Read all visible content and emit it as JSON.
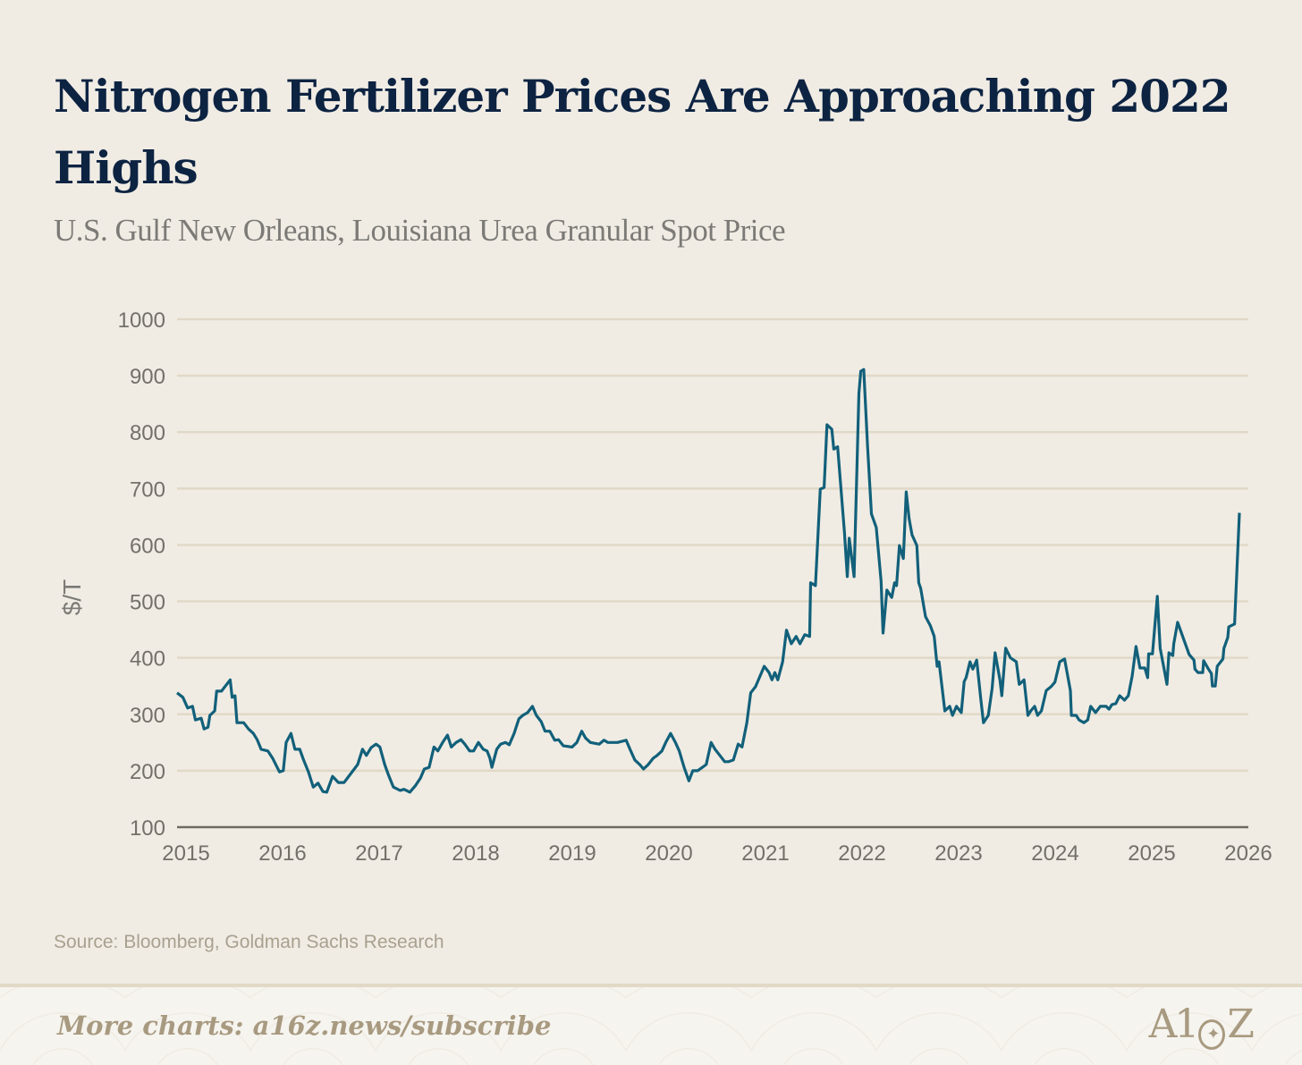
{
  "chart_data": {
    "type": "line",
    "title": "Nitrogen Fertilizer Prices Are Approaching 2022 Highs",
    "subtitle": "U.S. Gulf New Orleans, Louisiana Urea Granular Spot Price",
    "xlabel": "",
    "ylabel": "$/T",
    "xlim": [
      2015,
      2026
    ],
    "ylim": [
      100,
      1000
    ],
    "x_ticks": [
      "2015",
      "2016",
      "2017",
      "2018",
      "2019",
      "2020",
      "2021",
      "2022",
      "2023",
      "2024",
      "2025",
      "2026"
    ],
    "y_ticks": [
      "100",
      "200",
      "300",
      "400",
      "500",
      "600",
      "700",
      "800",
      "900",
      "1000"
    ],
    "grid": true,
    "legend": "none",
    "line_color": "#12607a",
    "series": [
      {
        "name": "Urea Granular Spot Price",
        "points": [
          [
            2015.0,
            338
          ],
          [
            2015.06,
            330
          ],
          [
            2015.11,
            311
          ],
          [
            2015.16,
            314
          ],
          [
            2015.19,
            290
          ],
          [
            2015.25,
            293
          ],
          [
            2015.28,
            274
          ],
          [
            2015.32,
            277
          ],
          [
            2015.34,
            298
          ],
          [
            2015.39,
            306
          ],
          [
            2015.41,
            341
          ],
          [
            2015.46,
            341
          ],
          [
            2015.55,
            361
          ],
          [
            2015.57,
            330
          ],
          [
            2015.6,
            333
          ],
          [
            2015.62,
            285
          ],
          [
            2015.69,
            285
          ],
          [
            2015.74,
            274
          ],
          [
            2015.79,
            266
          ],
          [
            2015.83,
            255
          ],
          [
            2015.87,
            238
          ],
          [
            2015.94,
            235
          ],
          [
            2015.99,
            222
          ],
          [
            2016.06,
            198
          ],
          [
            2016.1,
            200
          ],
          [
            2016.13,
            250
          ],
          [
            2016.18,
            266
          ],
          [
            2016.22,
            238
          ],
          [
            2016.27,
            238
          ],
          [
            2016.31,
            219
          ],
          [
            2016.36,
            198
          ],
          [
            2016.41,
            171
          ],
          [
            2016.46,
            178
          ],
          [
            2016.51,
            163
          ],
          [
            2016.55,
            162
          ],
          [
            2016.61,
            190
          ],
          [
            2016.67,
            179
          ],
          [
            2016.73,
            179
          ],
          [
            2016.8,
            195
          ],
          [
            2016.87,
            211
          ],
          [
            2016.92,
            238
          ],
          [
            2016.96,
            227
          ],
          [
            2017.01,
            241
          ],
          [
            2017.06,
            247
          ],
          [
            2017.1,
            242
          ],
          [
            2017.15,
            211
          ],
          [
            2017.19,
            192
          ],
          [
            2017.24,
            171
          ],
          [
            2017.31,
            165
          ],
          [
            2017.35,
            167
          ],
          [
            2017.41,
            162
          ],
          [
            2017.47,
            174
          ],
          [
            2017.52,
            187
          ],
          [
            2017.56,
            203
          ],
          [
            2017.61,
            206
          ],
          [
            2017.66,
            242
          ],
          [
            2017.7,
            235
          ],
          [
            2017.75,
            250
          ],
          [
            2017.8,
            263
          ],
          [
            2017.84,
            242
          ],
          [
            2017.89,
            250
          ],
          [
            2017.94,
            255
          ],
          [
            2017.98,
            247
          ],
          [
            2018.03,
            235
          ],
          [
            2018.07,
            235
          ],
          [
            2018.12,
            250
          ],
          [
            2018.17,
            238
          ],
          [
            2018.21,
            235
          ],
          [
            2018.24,
            222
          ],
          [
            2018.26,
            206
          ],
          [
            2018.31,
            238
          ],
          [
            2018.35,
            247
          ],
          [
            2018.4,
            250
          ],
          [
            2018.44,
            246
          ],
          [
            2018.49,
            266
          ],
          [
            2018.54,
            292
          ],
          [
            2018.58,
            298
          ],
          [
            2018.63,
            303
          ],
          [
            2018.68,
            314
          ],
          [
            2018.72,
            298
          ],
          [
            2018.77,
            287
          ],
          [
            2018.81,
            270
          ],
          [
            2018.86,
            270
          ],
          [
            2018.91,
            254
          ],
          [
            2018.95,
            255
          ],
          [
            2019.0,
            244
          ],
          [
            2019.09,
            242
          ],
          [
            2019.14,
            250
          ],
          [
            2019.19,
            270
          ],
          [
            2019.23,
            258
          ],
          [
            2019.28,
            250
          ],
          [
            2019.37,
            247
          ],
          [
            2019.42,
            254
          ],
          [
            2019.46,
            250
          ],
          [
            2019.56,
            250
          ],
          [
            2019.65,
            254
          ],
          [
            2019.69,
            238
          ],
          [
            2019.74,
            219
          ],
          [
            2019.79,
            211
          ],
          [
            2019.83,
            203
          ],
          [
            2019.88,
            211
          ],
          [
            2019.93,
            222
          ],
          [
            2019.97,
            227
          ],
          [
            2020.02,
            235
          ],
          [
            2020.06,
            250
          ],
          [
            2020.11,
            266
          ],
          [
            2020.16,
            250
          ],
          [
            2020.2,
            235
          ],
          [
            2020.25,
            206
          ],
          [
            2020.3,
            182
          ],
          [
            2020.34,
            200
          ],
          [
            2020.39,
            200
          ],
          [
            2020.44,
            206
          ],
          [
            2020.48,
            211
          ],
          [
            2020.53,
            250
          ],
          [
            2020.57,
            238
          ],
          [
            2020.62,
            227
          ],
          [
            2020.67,
            216
          ],
          [
            2020.71,
            216
          ],
          [
            2020.76,
            219
          ],
          [
            2020.81,
            247
          ],
          [
            2020.85,
            242
          ],
          [
            2020.9,
            285
          ],
          [
            2020.94,
            338
          ],
          [
            2020.99,
            349
          ],
          [
            2021.04,
            369
          ],
          [
            2021.08,
            385
          ],
          [
            2021.13,
            374
          ],
          [
            2021.16,
            361
          ],
          [
            2021.19,
            374
          ],
          [
            2021.22,
            361
          ],
          [
            2021.27,
            393
          ],
          [
            2021.31,
            449
          ],
          [
            2021.36,
            425
          ],
          [
            2021.41,
            438
          ],
          [
            2021.45,
            425
          ],
          [
            2021.5,
            441
          ],
          [
            2021.55,
            438
          ],
          [
            2021.56,
            533
          ],
          [
            2021.61,
            528
          ],
          [
            2021.66,
            699
          ],
          [
            2021.7,
            702
          ],
          [
            2021.73,
            813
          ],
          [
            2021.78,
            805
          ],
          [
            2021.8,
            770
          ],
          [
            2021.84,
            774
          ],
          [
            2021.91,
            623
          ],
          [
            2021.94,
            544
          ],
          [
            2021.96,
            612
          ],
          [
            2022.01,
            544
          ],
          [
            2022.06,
            869
          ],
          [
            2022.08,
            908
          ],
          [
            2022.11,
            911
          ],
          [
            2022.15,
            774
          ],
          [
            2022.19,
            655
          ],
          [
            2022.24,
            631
          ],
          [
            2022.29,
            536
          ],
          [
            2022.31,
            444
          ],
          [
            2022.35,
            520
          ],
          [
            2022.4,
            507
          ],
          [
            2022.43,
            533
          ],
          [
            2022.45,
            528
          ],
          [
            2022.48,
            599
          ],
          [
            2022.52,
            576
          ],
          [
            2022.55,
            694
          ],
          [
            2022.58,
            647
          ],
          [
            2022.61,
            618
          ],
          [
            2022.66,
            599
          ],
          [
            2022.68,
            533
          ],
          [
            2022.7,
            523
          ],
          [
            2022.75,
            473
          ],
          [
            2022.8,
            457
          ],
          [
            2022.84,
            438
          ],
          [
            2022.87,
            385
          ],
          [
            2022.89,
            393
          ],
          [
            2022.95,
            306
          ],
          [
            2023.0,
            314
          ],
          [
            2023.03,
            298
          ],
          [
            2023.07,
            314
          ],
          [
            2023.12,
            303
          ],
          [
            2023.15,
            358
          ],
          [
            2023.17,
            365
          ],
          [
            2023.21,
            393
          ],
          [
            2023.24,
            380
          ],
          [
            2023.28,
            396
          ],
          [
            2023.32,
            330
          ],
          [
            2023.35,
            285
          ],
          [
            2023.4,
            298
          ],
          [
            2023.44,
            346
          ],
          [
            2023.47,
            409
          ],
          [
            2023.52,
            361
          ],
          [
            2023.54,
            333
          ],
          [
            2023.58,
            417
          ],
          [
            2023.63,
            400
          ],
          [
            2023.69,
            393
          ],
          [
            2023.72,
            353
          ],
          [
            2023.77,
            361
          ],
          [
            2023.81,
            298
          ],
          [
            2023.84,
            306
          ],
          [
            2023.88,
            314
          ],
          [
            2023.91,
            298
          ],
          [
            2023.95,
            306
          ],
          [
            2024.0,
            342
          ],
          [
            2024.05,
            349
          ],
          [
            2024.09,
            357
          ],
          [
            2024.14,
            393
          ],
          [
            2024.19,
            398
          ],
          [
            2024.25,
            342
          ],
          [
            2024.26,
            298
          ],
          [
            2024.31,
            298
          ],
          [
            2024.34,
            290
          ],
          [
            2024.39,
            285
          ],
          [
            2024.43,
            290
          ],
          [
            2024.46,
            314
          ],
          [
            2024.51,
            303
          ],
          [
            2024.56,
            314
          ],
          [
            2024.62,
            314
          ],
          [
            2024.65,
            309
          ],
          [
            2024.68,
            317
          ],
          [
            2024.72,
            319
          ],
          [
            2024.76,
            333
          ],
          [
            2024.81,
            325
          ],
          [
            2024.85,
            333
          ],
          [
            2024.89,
            368
          ],
          [
            2024.93,
            420
          ],
          [
            2024.97,
            382
          ],
          [
            2025.02,
            382
          ],
          [
            2025.05,
            365
          ],
          [
            2025.06,
            407
          ],
          [
            2025.1,
            407
          ],
          [
            2025.15,
            509
          ],
          [
            2025.18,
            417
          ],
          [
            2025.25,
            353
          ],
          [
            2025.27,
            409
          ],
          [
            2025.31,
            404
          ],
          [
            2025.32,
            425
          ],
          [
            2025.36,
            463
          ],
          [
            2025.48,
            406
          ],
          [
            2025.53,
            396
          ],
          [
            2025.54,
            380
          ],
          [
            2025.57,
            374
          ],
          [
            2025.62,
            374
          ],
          [
            2025.63,
            395
          ],
          [
            2025.68,
            380
          ],
          [
            2025.71,
            372
          ],
          [
            2025.72,
            350
          ],
          [
            2025.75,
            350
          ],
          [
            2025.77,
            385
          ],
          [
            2025.83,
            398
          ],
          [
            2025.84,
            417
          ],
          [
            2025.88,
            436
          ],
          [
            2025.89,
            455
          ],
          [
            2025.95,
            460
          ],
          [
            2026.0,
            657
          ]
        ]
      }
    ],
    "source": "Source:  Bloomberg, Goldman Sachs Research"
  },
  "footer": {
    "link_text": "More charts: a16z.news/subscribe",
    "logo_text": "A16Z"
  }
}
